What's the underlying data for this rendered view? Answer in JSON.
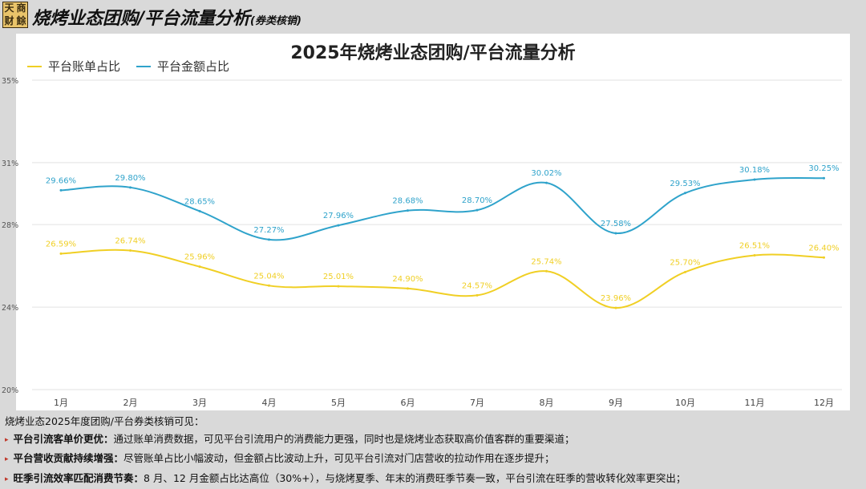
{
  "header": {
    "logo_chars": [
      "天",
      "商",
      "财",
      "餘"
    ],
    "title": "烧烤业态团购/平台流量分析",
    "subtitle": "(券类核销)"
  },
  "colors": {
    "bill_share": "#f0cf24",
    "amount_share": "#2fa3cb",
    "grid": "#e2e2e2"
  },
  "chart_data": {
    "type": "line",
    "title": "2025年烧烤业态团购/平台流量分析",
    "categories": [
      "1月",
      "2月",
      "3月",
      "4月",
      "5月",
      "6月",
      "7月",
      "8月",
      "9月",
      "10月",
      "11月",
      "12月"
    ],
    "series": [
      {
        "name": "平台账单占比",
        "values": [
          26.59,
          26.74,
          25.96,
          25.04,
          25.01,
          24.9,
          24.57,
          25.74,
          23.96,
          25.7,
          26.51,
          26.4
        ],
        "labels": [
          "26.59%",
          "26.74%",
          "25.96%",
          "25.04%",
          "25.01%",
          "24.90%",
          "24.57%",
          "25.74%",
          "23.96%",
          "25.70%",
          "26.51%",
          "26.40%"
        ]
      },
      {
        "name": "平台金额占比",
        "values": [
          29.66,
          29.8,
          28.65,
          27.27,
          27.96,
          28.68,
          28.7,
          30.02,
          27.58,
          29.53,
          30.18,
          30.25
        ],
        "labels": [
          "29.66%",
          "29.80%",
          "28.65%",
          "27.27%",
          "27.96%",
          "28.68%",
          "28.70%",
          "30.02%",
          "27.58%",
          "29.53%",
          "30.18%",
          "30.25%"
        ]
      }
    ],
    "yticks": [
      20,
      24,
      28,
      31,
      35
    ],
    "ytick_labels": [
      "20%",
      "24%",
      "28%",
      "31%",
      "35%"
    ],
    "ylim": [
      20,
      35
    ],
    "grid": true,
    "legend_position": "top-left"
  },
  "notes": {
    "intro": "烧烤业态2025年度团购/平台券类核销可见：",
    "items": [
      {
        "head": "平台引流客单价更优：",
        "text": "通过账单消费数据，可见平台引流用户的消费能力更强，同时也是烧烤业态获取高价值客群的重要渠道；"
      },
      {
        "head": "平台营收贡献持续增强：",
        "text": "尽管账单占比小幅波动，但金额占比波动上升，可见平台引流对门店营收的拉动作用在逐步提升；"
      },
      {
        "head": "旺季引流效率匹配消费节奏：",
        "text": "8 月、12 月金额占比达高位（30%+），与烧烤夏季、年末的消费旺季节奏一致，平台引流在旺季的营收转化效率更突出；"
      }
    ]
  }
}
